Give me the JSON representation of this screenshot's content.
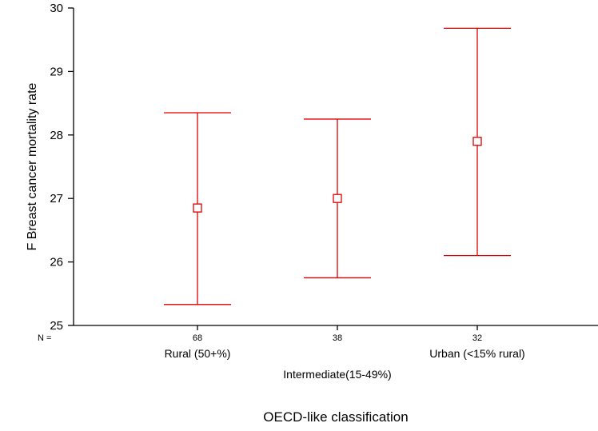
{
  "chart_data": {
    "type": "errorbar",
    "ylabel": "F Breast cancer mortality rate",
    "xlabel": "OECD-like classification",
    "ylim": [
      25,
      30
    ],
    "yticks": [
      25,
      26,
      27,
      28,
      29,
      30
    ],
    "n_label": "N =",
    "grid": false,
    "series_color": "#dd0000",
    "categories": [
      {
        "label": "Rural (50+%)",
        "n": "68",
        "mean": 26.85,
        "lower": 25.33,
        "upper": 28.35
      },
      {
        "label": "Intermediate(15-49%)",
        "n": "38",
        "mean": 27.0,
        "lower": 25.75,
        "upper": 28.25
      },
      {
        "label": "Urban (<15% rural)",
        "n": "32",
        "mean": 27.9,
        "lower": 26.1,
        "upper": 29.68
      }
    ]
  }
}
